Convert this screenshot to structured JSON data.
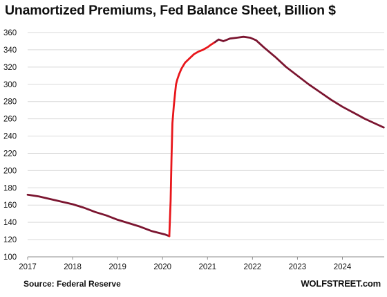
{
  "title": "Unamortized Premiums, Fed Balance Sheet, Billion $",
  "source": "Source: Federal Reserve",
  "brand": "WOLFSTREET.com",
  "colors": {
    "line": "#7b1530",
    "highlight": "#e8161b",
    "grid": "#d9d9d9"
  },
  "chart_data": {
    "type": "line",
    "title": "Unamortized Premiums, Fed Balance Sheet, Billion $",
    "xlabel": "",
    "ylabel": "",
    "xlim": [
      2017.0,
      2024.93
    ],
    "ylim": [
      100,
      360
    ],
    "y_ticks": [
      100,
      120,
      140,
      160,
      180,
      200,
      220,
      240,
      260,
      280,
      300,
      320,
      340,
      360
    ],
    "x_ticks": [
      "2017",
      "2018",
      "2019",
      "2020",
      "2021",
      "2022",
      "2023",
      "2024"
    ],
    "grid": "horizontal",
    "legend": "none",
    "series": [
      {
        "x": [
          2017.0,
          2017.25,
          2017.5,
          2017.75,
          2018.0,
          2018.25,
          2018.5,
          2018.75,
          2019.0,
          2019.25,
          2019.5,
          2019.75,
          2019.9,
          2020.05,
          2020.15
        ],
        "values": [
          172,
          170,
          167,
          164,
          161,
          157,
          152,
          148,
          143,
          139,
          135,
          130,
          128,
          126,
          124
        ]
      },
      {
        "x": [
          2020.15,
          2020.18,
          2020.2,
          2020.22,
          2020.25,
          2020.28,
          2020.3,
          2020.33,
          2020.37,
          2020.42,
          2020.5,
          2020.6,
          2020.7,
          2020.8,
          2020.9,
          2021.0,
          2021.08,
          2021.17
        ],
        "values": [
          124,
          165,
          215,
          255,
          275,
          290,
          300,
          306,
          312,
          318,
          325,
          330,
          335,
          338,
          340,
          343,
          346,
          349
        ]
      },
      {
        "x": [
          2021.17,
          2021.25,
          2021.35,
          2021.5,
          2021.65,
          2021.8,
          2021.95,
          2022.08,
          2022.25,
          2022.5,
          2022.75,
          2023.0,
          2023.25,
          2023.5,
          2023.75,
          2024.0,
          2024.25,
          2024.5,
          2024.75,
          2024.92
        ],
        "values": [
          349,
          352,
          350,
          353,
          354,
          355,
          354,
          351,
          343,
          332,
          320,
          310,
          300,
          291,
          282,
          274,
          267,
          260,
          254,
          250
        ]
      }
    ]
  }
}
